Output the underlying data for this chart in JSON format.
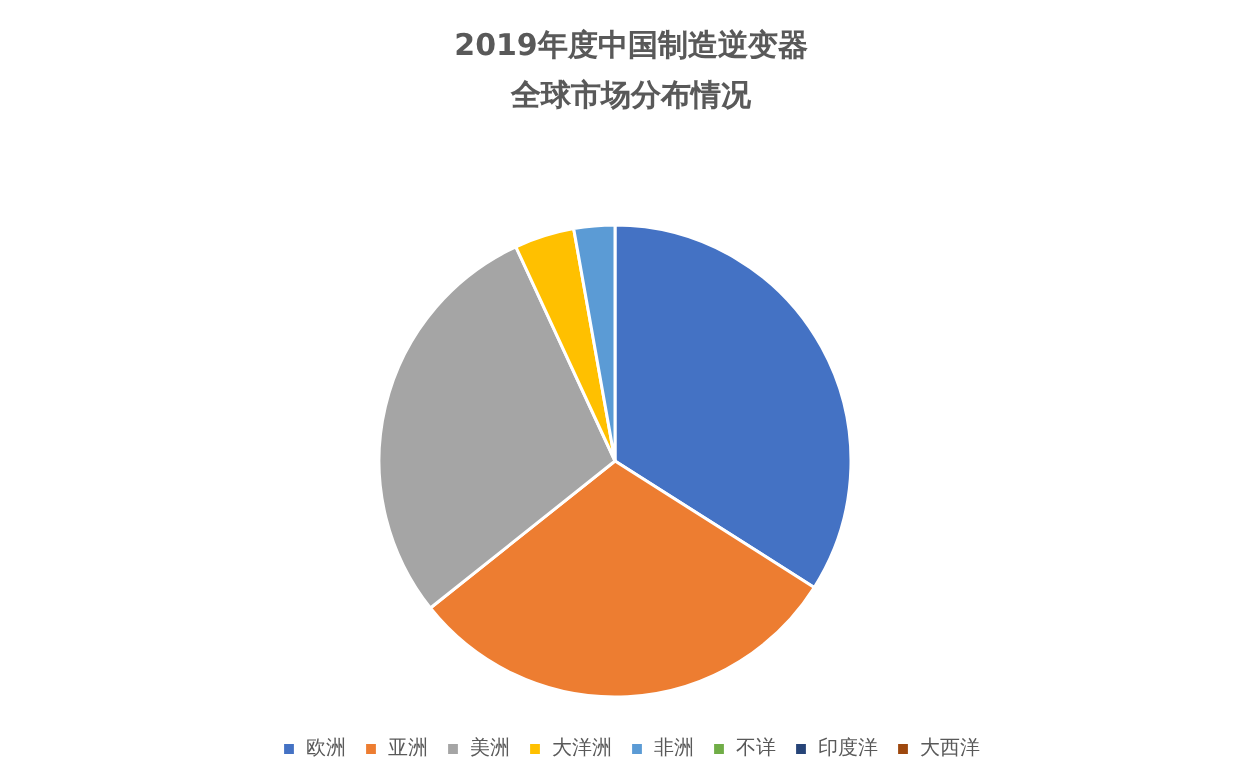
{
  "chart_data": {
    "type": "pie",
    "title": "2019年度中国制造逆变器",
    "subtitle": "全球市场分布情况",
    "categories": [
      "欧洲",
      "亚洲",
      "美洲",
      "大洋洲",
      "非洲",
      "不详",
      "印度洋",
      "大西洋"
    ],
    "values": [
      34,
      30.3,
      28.8,
      4.1,
      2.8,
      0,
      0,
      0
    ],
    "colors": [
      "#4472c4",
      "#ed7d31",
      "#a5a5a5",
      "#ffc000",
      "#5b9bd5",
      "#70ad47",
      "#264478",
      "#9e480e"
    ],
    "legend": "bottom"
  }
}
